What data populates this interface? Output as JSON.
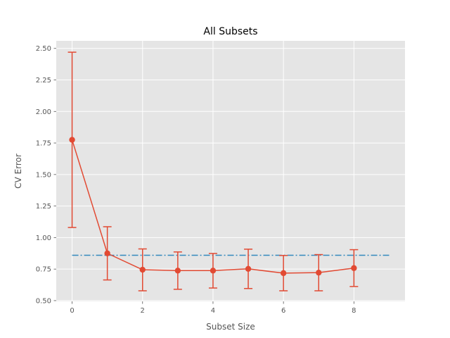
{
  "chart_data": {
    "type": "line",
    "title": "All Subsets",
    "xlabel": "Subset Size",
    "ylabel": "CV Error",
    "xlim": [
      -0.45,
      9.45
    ],
    "ylim": [
      0.494,
      2.56
    ],
    "xticks": [
      "0",
      "2",
      "4",
      "6",
      "8"
    ],
    "yticks": [
      "0.50",
      "0.75",
      "1.00",
      "1.25",
      "1.50",
      "1.75",
      "2.00",
      "2.25",
      "2.50"
    ],
    "grid": true,
    "background": "#e5e5e5",
    "series": [
      {
        "type": "errorbar",
        "color": "#e24a33",
        "x": [
          0,
          1,
          2,
          3,
          4,
          5,
          6,
          7,
          8
        ],
        "values": [
          1.775,
          0.875,
          0.745,
          0.738,
          0.738,
          0.752,
          0.718,
          0.722,
          0.758
        ],
        "err_low": [
          1.08,
          0.664,
          0.578,
          0.59,
          0.6,
          0.596,
          0.578,
          0.578,
          0.612
        ],
        "err_high": [
          2.47,
          1.086,
          0.91,
          0.886,
          0.874,
          0.908,
          0.858,
          0.865,
          0.904
        ]
      },
      {
        "type": "hline",
        "color": "#348abd",
        "style": "dash-dot",
        "x": [
          0,
          9
        ],
        "value": 0.86
      }
    ]
  }
}
